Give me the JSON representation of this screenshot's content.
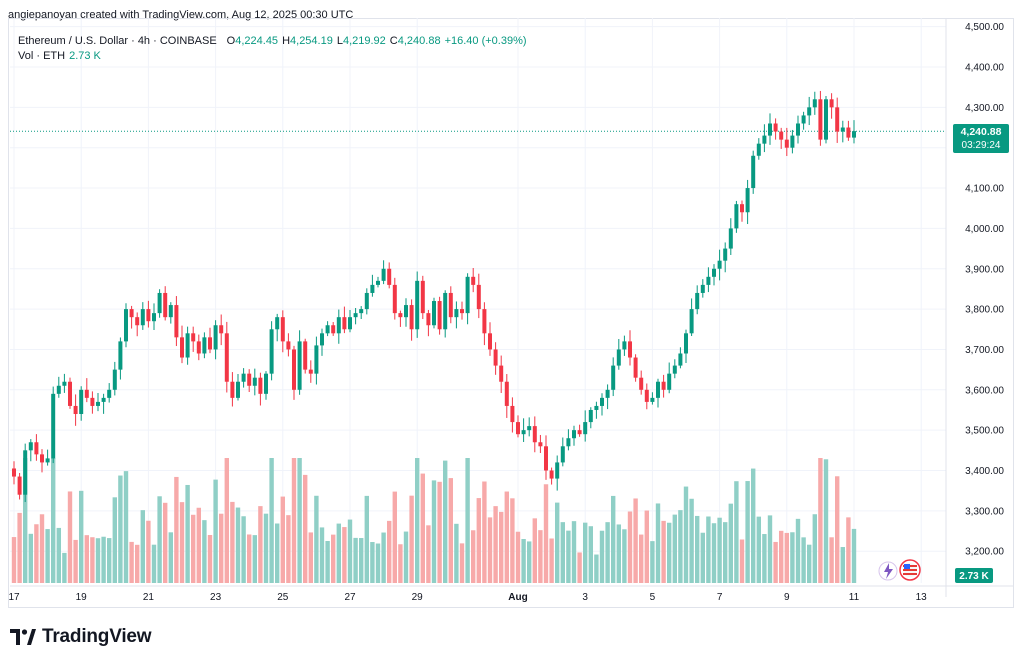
{
  "caption": "angiepanoyan created with TradingView.com, Aug 12, 2025 00:30 UTC",
  "legend": {
    "symbol": "Ethereum / U.S. Dollar · 4h · COINBASE",
    "o_key": "O",
    "o_val": "4,224.45",
    "h_key": "H",
    "h_val": "4,254.19",
    "l_key": "L",
    "l_val": "4,219.92",
    "c_key": "C",
    "c_val": "4,240.88",
    "change": "+16.40 (+0.39%)",
    "vol_label": "Vol · ETH",
    "vol_val": "2.73 K"
  },
  "price_tag": {
    "price": "4,240.88",
    "countdown": "03:29:24",
    "value": 4240.88
  },
  "volume_tag": "2.73 K",
  "logo_text": "TradingView",
  "colors": {
    "up": "#089981",
    "down": "#f23645",
    "up_vol": "#8fcfc6",
    "down_vol": "#f7a9a9",
    "grid": "#f0f3fa"
  },
  "chart_data": {
    "type": "candlestick",
    "ylim": [
      3150,
      4500
    ],
    "yticks": [
      3200,
      3300,
      3400,
      3500,
      3600,
      3700,
      3800,
      3900,
      4000,
      4100,
      4200,
      4300,
      4400,
      4500
    ],
    "ytick_labels": [
      "3,200.00",
      "3,300.00",
      "3,400.00",
      "3,500.00",
      "3,600.00",
      "3,700.00",
      "3,800.00",
      "3,900.00",
      "4,000.00",
      "4,100.00",
      "4,200.00",
      "4,300.00",
      "4,400.00",
      "4,500.00"
    ],
    "xticks": [
      {
        "label": "17",
        "bar": 0
      },
      {
        "label": "19",
        "bar": 12
      },
      {
        "label": "21",
        "bar": 24
      },
      {
        "label": "23",
        "bar": 36
      },
      {
        "label": "25",
        "bar": 48
      },
      {
        "label": "27",
        "bar": 60
      },
      {
        "label": "29",
        "bar": 72
      },
      {
        "label": "Aug",
        "bar": 90
      },
      {
        "label": "3",
        "bar": 102
      },
      {
        "label": "5",
        "bar": 114
      },
      {
        "label": "7",
        "bar": 126
      },
      {
        "label": "9",
        "bar": 138
      },
      {
        "label": "11",
        "bar": 150
      },
      {
        "label": "13",
        "bar": 162
      }
    ],
    "volume_max": 10000,
    "closes": [
      3385,
      3340,
      3450,
      3470,
      3440,
      3420,
      3430,
      3590,
      3610,
      3620,
      3560,
      3540,
      3600,
      3580,
      3560,
      3570,
      3580,
      3600,
      3650,
      3720,
      3800,
      3780,
      3760,
      3800,
      3770,
      3790,
      3840,
      3780,
      3810,
      3730,
      3680,
      3740,
      3720,
      3690,
      3730,
      3700,
      3760,
      3740,
      3620,
      3580,
      3620,
      3640,
      3610,
      3630,
      3590,
      3640,
      3750,
      3780,
      3720,
      3700,
      3600,
      3720,
      3650,
      3640,
      3710,
      3740,
      3760,
      3740,
      3780,
      3750,
      3780,
      3790,
      3800,
      3840,
      3860,
      3870,
      3900,
      3860,
      3790,
      3780,
      3810,
      3750,
      3870,
      3790,
      3760,
      3820,
      3750,
      3840,
      3780,
      3800,
      3790,
      3880,
      3860,
      3800,
      3740,
      3700,
      3660,
      3620,
      3560,
      3520,
      3490,
      3500,
      3510,
      3470,
      3460,
      3400,
      3380,
      3420,
      3460,
      3480,
      3500,
      3490,
      3520,
      3550,
      3560,
      3580,
      3600,
      3660,
      3700,
      3720,
      3680,
      3630,
      3600,
      3570,
      3580,
      3620,
      3600,
      3640,
      3660,
      3690,
      3740,
      3800,
      3840,
      3860,
      3880,
      3900,
      3920,
      3950,
      4000,
      4060,
      4040,
      4100,
      4180,
      4210,
      4230,
      4260,
      4240,
      4220,
      4200,
      4230,
      4260,
      4280,
      4300,
      4320,
      4220,
      4320,
      4300,
      4240,
      4250,
      4225,
      4241
    ]
  }
}
